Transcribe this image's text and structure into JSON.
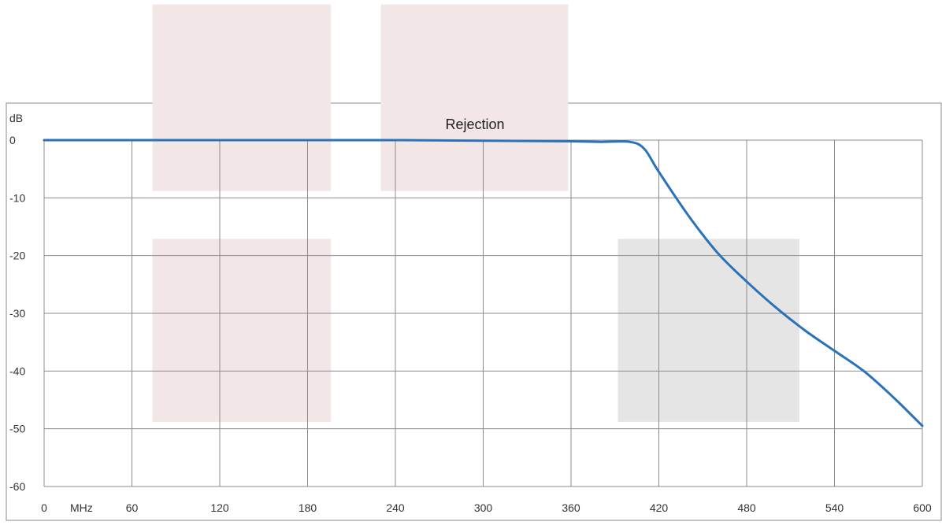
{
  "chart_data": {
    "type": "line",
    "title": "Rejection",
    "xlabel": "MHz",
    "ylabel": "dB",
    "xlim": [
      0,
      600
    ],
    "ylim": [
      -60,
      0
    ],
    "x_ticks": [
      0,
      60,
      120,
      180,
      240,
      300,
      360,
      420,
      480,
      540,
      600
    ],
    "y_ticks": [
      0,
      -10,
      -20,
      -30,
      -40,
      -50,
      -60
    ],
    "grid": true,
    "series": [
      {
        "color": "#2a73b8",
        "x": [
          0,
          60,
          120,
          180,
          240,
          300,
          360,
          380,
          400,
          410,
          420,
          440,
          460,
          480,
          500,
          520,
          540,
          560,
          580,
          600
        ],
        "y": [
          0,
          0,
          0,
          0,
          0,
          -0.1,
          -0.2,
          -0.3,
          -0.3,
          -1.5,
          -5.5,
          -13,
          -19.5,
          -24.5,
          -29,
          -33,
          -36.5,
          -40,
          -44.5,
          -49.5
        ]
      }
    ],
    "shaded_regions": [
      {
        "x": [
          74,
          196
        ],
        "y": [
          -8.8,
          23.5
        ],
        "color": "#f2e6e6"
      },
      {
        "x": [
          230,
          358
        ],
        "y": [
          -8.8,
          23.5
        ],
        "color": "#f2e6e6"
      },
      {
        "x": [
          74,
          196
        ],
        "y": [
          -48.8,
          -17.1
        ],
        "color": "#f2e6e6"
      },
      {
        "x": [
          392,
          516
        ],
        "y": [
          -48.8,
          -17.1
        ],
        "color": "#e5e5e5"
      }
    ]
  }
}
